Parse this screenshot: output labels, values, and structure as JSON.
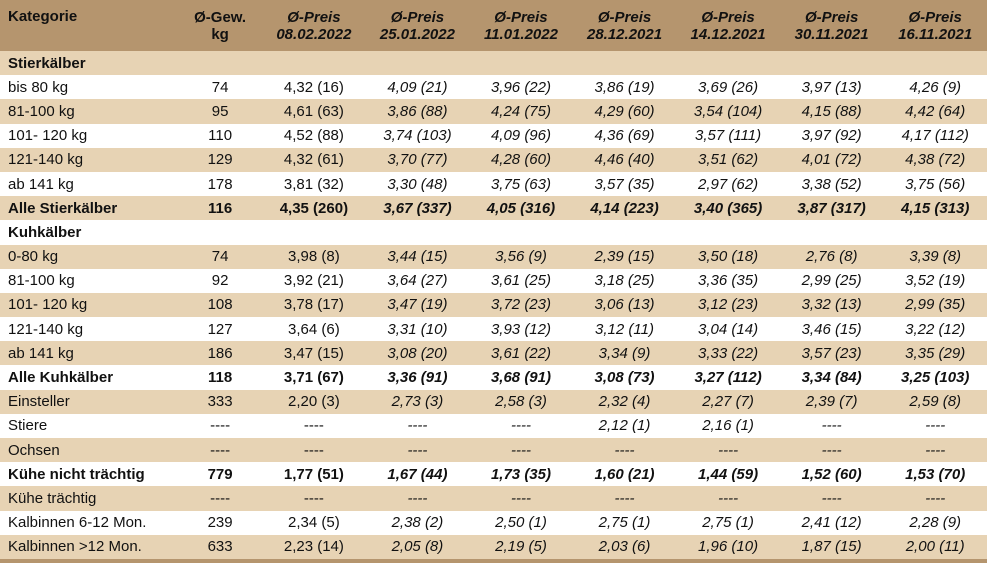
{
  "header": {
    "category": "Kategorie",
    "weight": [
      "Ø-Gew.",
      "kg"
    ],
    "prices": [
      [
        "Ø-Preis",
        "08.02.2022"
      ],
      [
        "Ø-Preis",
        "25.01.2022"
      ],
      [
        "Ø-Preis",
        "11.01.2022"
      ],
      [
        "Ø-Preis",
        "28.12.2021"
      ],
      [
        "Ø-Preis",
        "14.12.2021"
      ],
      [
        "Ø-Preis",
        "30.11.2021"
      ],
      [
        "Ø-Preis",
        "16.11.2021"
      ]
    ]
  },
  "rows": [
    {
      "type": "section",
      "label": "Stierkälber"
    },
    {
      "type": "data",
      "shade": "light",
      "label": "bis 80 kg",
      "weight": "74",
      "prices": [
        "4,32 (16)",
        "4,09 (21)",
        "3,96 (22)",
        "3,86 (19)",
        "3,69 (26)",
        "3,97 (13)",
        "4,26 (9)"
      ]
    },
    {
      "type": "data",
      "shade": "dark",
      "label": "81-100 kg",
      "weight": "95",
      "prices": [
        "4,61 (63)",
        "3,86 (88)",
        "4,24 (75)",
        "4,29 (60)",
        "3,54 (104)",
        "4,15 (88)",
        "4,42 (64)"
      ]
    },
    {
      "type": "data",
      "shade": "light",
      "label": "101- 120 kg",
      "weight": "110",
      "prices": [
        "4,52 (88)",
        "3,74 (103)",
        "4,09 (96)",
        "4,36 (69)",
        "3,57 (111)",
        "3,97 (92)",
        "4,17 (112)"
      ]
    },
    {
      "type": "data",
      "shade": "dark",
      "label": "121-140 kg",
      "weight": "129",
      "prices": [
        "4,32 (61)",
        "3,70 (77)",
        "4,28 (60)",
        "4,46 (40)",
        "3,51 (62)",
        "4,01 (72)",
        "4,38 (72)"
      ]
    },
    {
      "type": "data",
      "shade": "light",
      "label": "ab 141 kg",
      "weight": "178",
      "prices": [
        "3,81 (32)",
        "3,30 (48)",
        "3,75 (63)",
        "3,57 (35)",
        "2,97 (62)",
        "3,38 (52)",
        "3,75 (56)"
      ]
    },
    {
      "type": "total",
      "shade": "dark",
      "label": "Alle Stierkälber",
      "weight": "116",
      "prices": [
        "4,35 (260)",
        "3,67 (337)",
        "4,05 (316)",
        "4,14 (223)",
        "3,40 (365)",
        "3,87 (317)",
        "4,15 (313)"
      ]
    },
    {
      "type": "section-light",
      "label": "Kuhkälber"
    },
    {
      "type": "data",
      "shade": "dark",
      "label": "0-80 kg",
      "weight": "74",
      "prices": [
        "3,98 (8)",
        "3,44 (15)",
        "3,56 (9)",
        "2,39 (15)",
        "3,50 (18)",
        "2,76 (8)",
        "3,39 (8)"
      ]
    },
    {
      "type": "data",
      "shade": "light",
      "label": "81-100 kg",
      "weight": "92",
      "prices": [
        "3,92 (21)",
        "3,64 (27)",
        "3,61 (25)",
        "3,18 (25)",
        "3,36 (35)",
        "2,99 (25)",
        "3,52 (19)"
      ]
    },
    {
      "type": "data",
      "shade": "dark",
      "label": "101- 120 kg",
      "weight": "108",
      "prices": [
        "3,78 (17)",
        "3,47 (19)",
        "3,72 (23)",
        "3,06 (13)",
        "3,12 (23)",
        "3,32 (13)",
        "2,99 (35)"
      ]
    },
    {
      "type": "data",
      "shade": "light",
      "label": "121-140 kg",
      "weight": "127",
      "prices": [
        "3,64 (6)",
        "3,31 (10)",
        "3,93 (12)",
        "3,12 (11)",
        "3,04 (14)",
        "3,46 (15)",
        "3,22 (12)"
      ]
    },
    {
      "type": "data",
      "shade": "dark",
      "label": "ab 141 kg",
      "weight": "186",
      "prices": [
        "3,47 (15)",
        "3,08 (20)",
        "3,61 (22)",
        "3,34 (9)",
        "3,33 (22)",
        "3,57 (23)",
        "3,35 (29)"
      ]
    },
    {
      "type": "total",
      "shade": "light",
      "label": "Alle Kuhkälber",
      "weight": "118",
      "prices": [
        "3,71 (67)",
        "3,36 (91)",
        "3,68 (91)",
        "3,08 (73)",
        "3,27 (112)",
        "3,34 (84)",
        "3,25 (103)"
      ]
    },
    {
      "type": "data",
      "shade": "dark",
      "label": "Einsteller",
      "weight": "333",
      "prices": [
        "2,20 (3)",
        "2,73 (3)",
        "2,58 (3)",
        "2,32 (4)",
        "2,27 (7)",
        "2,39 (7)",
        "2,59 (8)"
      ]
    },
    {
      "type": "data",
      "shade": "light",
      "label": "Stiere",
      "weight": "----",
      "prices": [
        "----",
        "----",
        "----",
        "2,12 (1)",
        "2,16 (1)",
        "----",
        "----"
      ]
    },
    {
      "type": "data",
      "shade": "dark",
      "label": "Ochsen",
      "weight": "----",
      "prices": [
        "----",
        "----",
        "----",
        "----",
        "----",
        "----",
        "----"
      ]
    },
    {
      "type": "total",
      "shade": "light",
      "label": "Kühe nicht trächtig",
      "weight": "779",
      "prices": [
        "1,77 (51)",
        "1,67 (44)",
        "1,73 (35)",
        "1,60 (21)",
        "1,44 (59)",
        "1,52 (60)",
        "1,53 (70)"
      ]
    },
    {
      "type": "data",
      "shade": "dark",
      "label": "Kühe trächtig",
      "weight": "----",
      "prices": [
        "----",
        "----",
        "----",
        "----",
        "----",
        "----",
        "----"
      ]
    },
    {
      "type": "data",
      "shade": "light",
      "label": "Kalbinnen 6-12 Mon.",
      "weight": "239",
      "prices": [
        "2,34 (5)",
        "2,38 (2)",
        "2,50 (1)",
        "2,75 (1)",
        "2,75 (1)",
        "2,41 (12)",
        "2,28 (9)"
      ]
    },
    {
      "type": "data",
      "shade": "dark",
      "label": "Kalbinnen >12 Mon.",
      "weight": "633",
      "prices": [
        "2,23 (14)",
        "2,05 (8)",
        "2,19 (5)",
        "2,03 (6)",
        "1,96 (10)",
        "1,87 (15)",
        "2,00 (11)"
      ]
    }
  ]
}
